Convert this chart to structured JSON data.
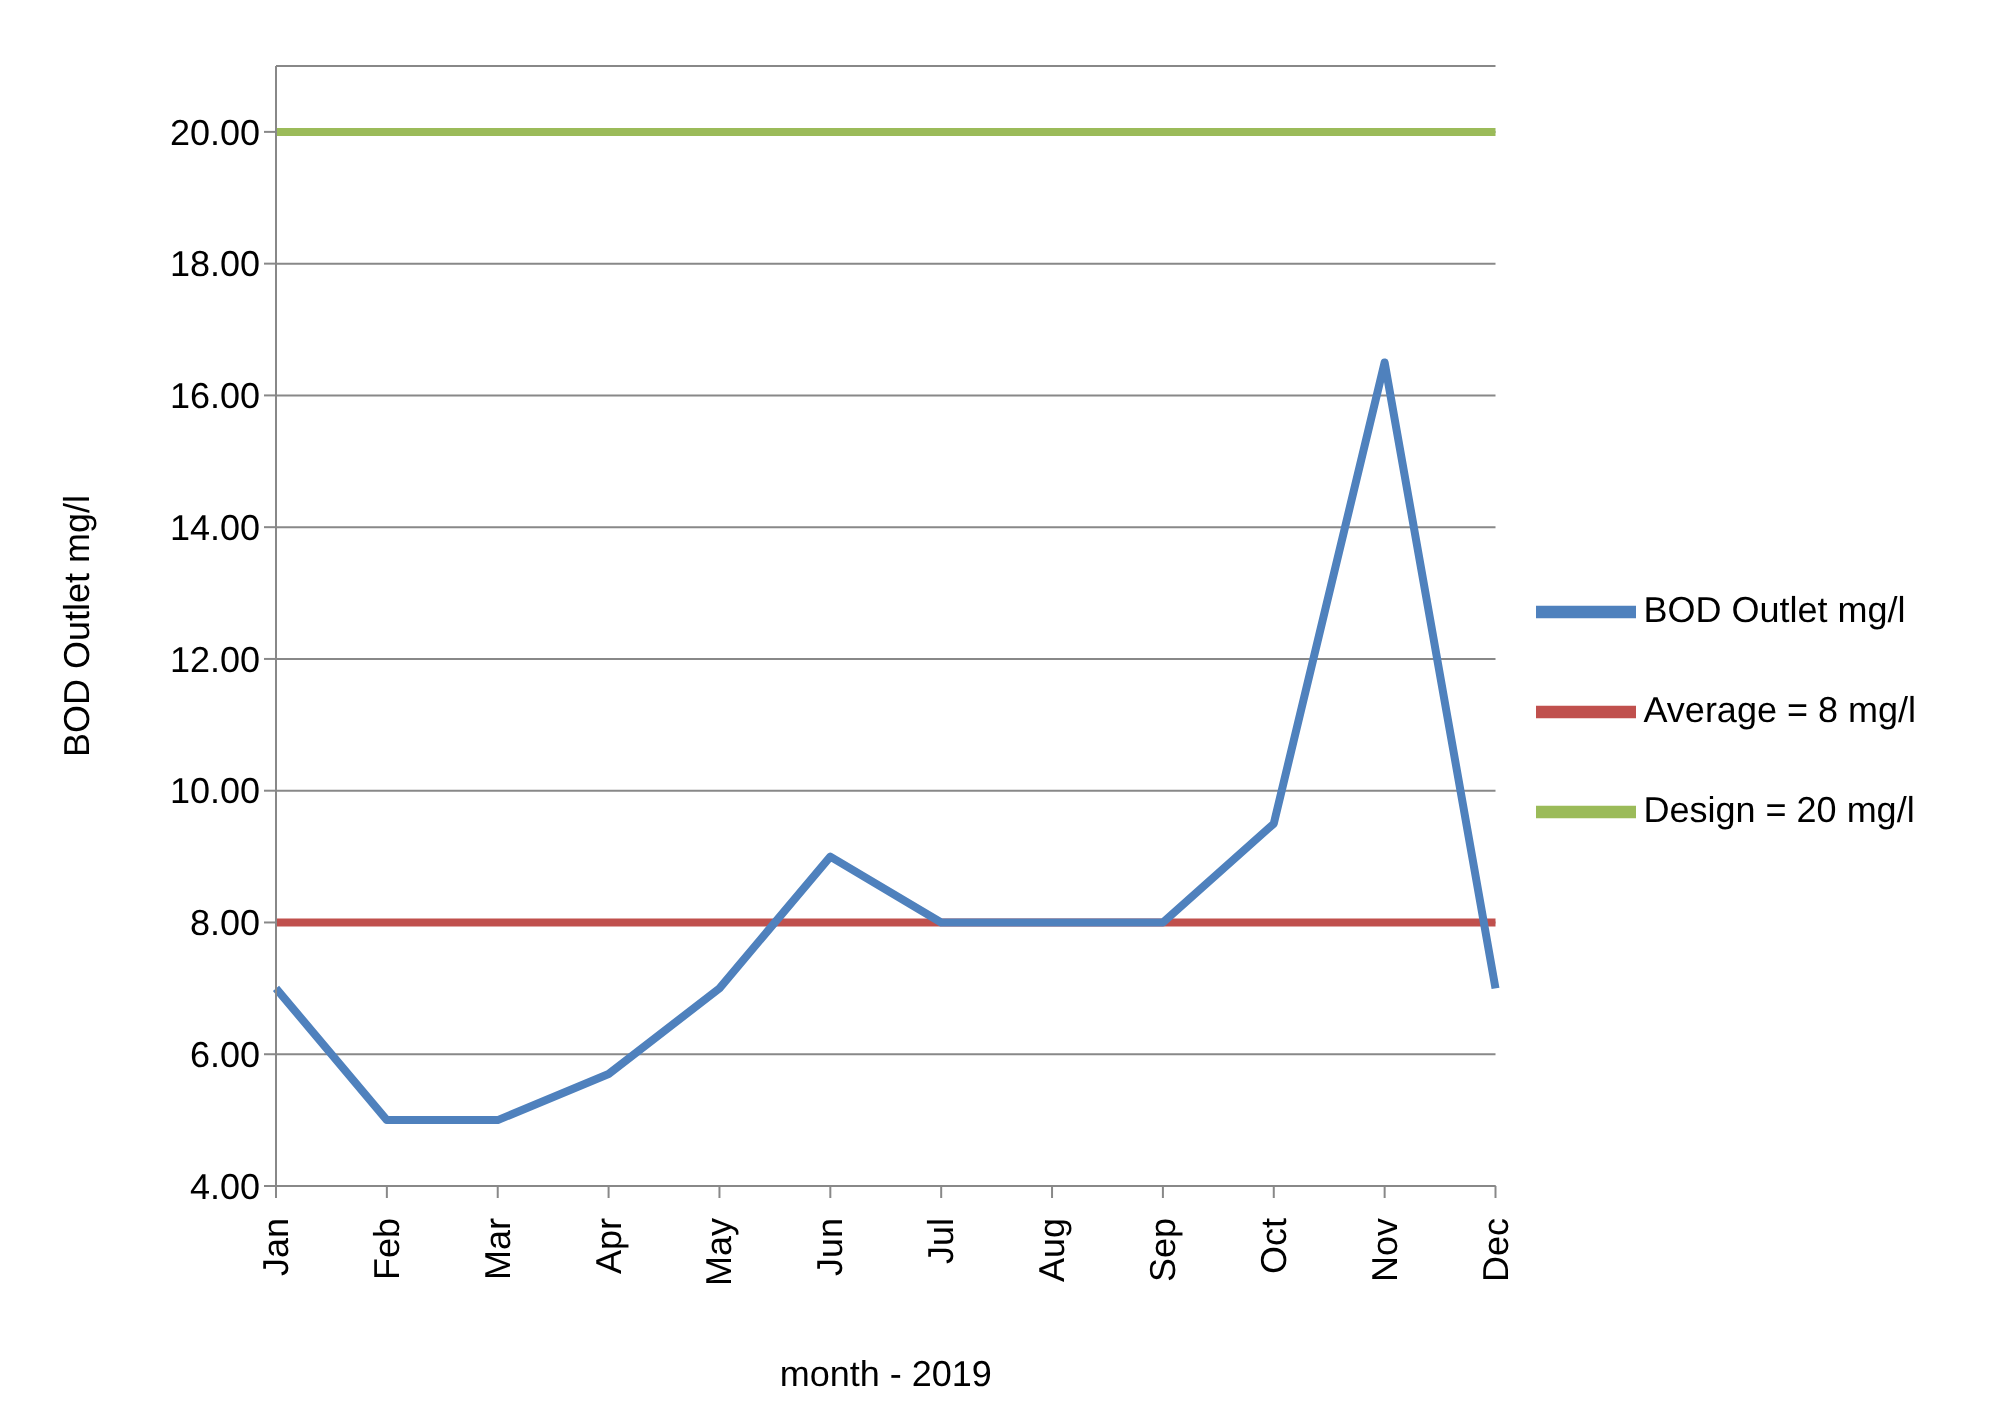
{
  "chart_data": {
    "type": "line",
    "xlabel": "month - 2019",
    "ylabel": "BOD Outlet mg/l",
    "categories": [
      "Jan",
      "Feb",
      "Mar",
      "Apr",
      "May",
      "Jun",
      "Jul",
      "Aug",
      "Sep",
      "Oct",
      "Nov",
      "Dec"
    ],
    "series": [
      {
        "name": "BOD Outlet mg/l",
        "color": "#4f81bd",
        "values": [
          7,
          5,
          5,
          5.7,
          7,
          9,
          8,
          8,
          8,
          9.5,
          16.5,
          7
        ]
      },
      {
        "name": "Average = 8 mg/l",
        "color": "#c0504d",
        "values": [
          8,
          8,
          8,
          8,
          8,
          8,
          8,
          8,
          8,
          8,
          8,
          8
        ]
      },
      {
        "name": "Design = 20 mg/l",
        "color": "#9bbb59",
        "values": [
          20,
          20,
          20,
          20,
          20,
          20,
          20,
          20,
          20,
          20,
          20,
          20
        ]
      }
    ],
    "ylim": [
      4,
      21
    ],
    "yticks": [
      {
        "value": 4,
        "label": "4.00"
      },
      {
        "value": 6,
        "label": "6.00"
      },
      {
        "value": 8,
        "label": "8.00"
      },
      {
        "value": 10,
        "label": "10.00"
      },
      {
        "value": 12,
        "label": "12.00"
      },
      {
        "value": 14,
        "label": "14.00"
      },
      {
        "value": 16,
        "label": "16.00"
      },
      {
        "value": 18,
        "label": "18.00"
      },
      {
        "value": 20,
        "label": "20.00"
      }
    ],
    "grid": "y",
    "legend": "right",
    "marker": "none",
    "line_style": "solid"
  }
}
